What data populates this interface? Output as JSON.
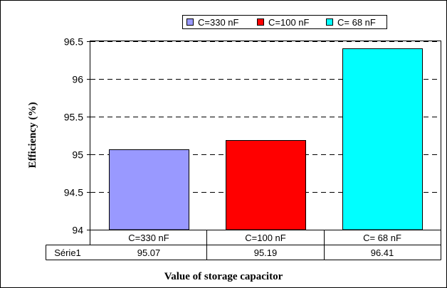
{
  "chart_data": {
    "type": "bar",
    "title": "",
    "xlabel": "Value of storage capacitor",
    "ylabel": "Efficiency (%)",
    "ylim": [
      94,
      96.5
    ],
    "yticks": [
      "94",
      "94.5",
      "95",
      "95.5",
      "96",
      "96.5"
    ],
    "grid": true,
    "legend_position": "top",
    "categories": [
      "C=330 nF",
      "C=100 nF",
      "C= 68 nF"
    ],
    "colors": [
      "#9999ff",
      "#ff0000",
      "#00ffff"
    ],
    "series": [
      {
        "name": "Série1",
        "values": [
          95.07,
          95.19,
          96.41
        ]
      }
    ],
    "legend": [
      "C=330 nF",
      "C=100 nF",
      "C= 68 nF"
    ],
    "table": {
      "row_label": "Série1",
      "cells": [
        "95.07",
        "95.19",
        "96.41"
      ]
    }
  }
}
